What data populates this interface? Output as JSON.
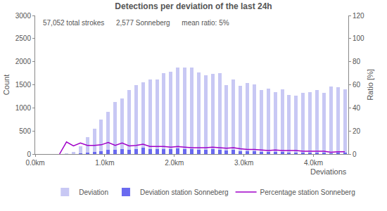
{
  "chart_data": {
    "type": "bar",
    "title": "Detections per deviation of the last 24h",
    "stats": [
      "57,052 total strokes",
      "2,577 Sonneberg",
      "mean ratio: 5%"
    ],
    "x_label": "Deviations",
    "y_label": "Count",
    "y2_label": "Ratio [%]",
    "x": [
      0.05,
      0.15,
      0.25,
      0.35,
      0.45,
      0.55,
      0.65,
      0.75,
      0.85,
      0.95,
      1.05,
      1.15,
      1.25,
      1.35,
      1.45,
      1.55,
      1.65,
      1.75,
      1.85,
      1.95,
      2.05,
      2.15,
      2.25,
      2.35,
      2.45,
      2.55,
      2.65,
      2.75,
      2.85,
      2.95,
      3.05,
      3.15,
      3.25,
      3.35,
      3.45,
      3.55,
      3.65,
      3.75,
      3.85,
      3.95,
      4.05,
      4.15,
      4.25,
      4.35,
      4.45
    ],
    "series": [
      {
        "name": "Deviation",
        "type": "bar",
        "color": "#c8c8f4",
        "values": [
          2,
          2,
          2,
          3,
          20,
          50,
          160,
          360,
          550,
          740,
          920,
          1120,
          1200,
          1390,
          1500,
          1550,
          1620,
          1620,
          1750,
          1780,
          1880,
          1870,
          1870,
          1760,
          1710,
          1730,
          1750,
          1500,
          1620,
          1480,
          1540,
          1510,
          1390,
          1420,
          1340,
          1400,
          1280,
          1270,
          1330,
          1340,
          1380,
          1330,
          1460,
          1450,
          1400
        ]
      },
      {
        "name": "Deviation station Sonneberg",
        "type": "bar",
        "color": "#6a6af0",
        "values": [
          0,
          0,
          0,
          0,
          2,
          4,
          15,
          27,
          41,
          59,
          92,
          84,
          114,
          97,
          113,
          132,
          105,
          105,
          114,
          107,
          122,
          112,
          103,
          97,
          94,
          104,
          96,
          75,
          89,
          67,
          62,
          60,
          49,
          43,
          47,
          42,
          38,
          38,
          33,
          34,
          35,
          33,
          22,
          29,
          28
        ]
      },
      {
        "name": "Percentage station Sonneberg",
        "type": "line",
        "axis": "y2",
        "color": "#a000c8",
        "values": [
          null,
          null,
          null,
          0,
          10.5,
          7,
          9.5,
          7.5,
          7.5,
          8,
          10,
          7.5,
          9.5,
          7,
          7.5,
          8.5,
          6.5,
          6.5,
          6.5,
          6,
          6.5,
          6,
          5.5,
          5.5,
          5.5,
          6,
          5.5,
          5,
          5.5,
          4.5,
          4,
          4,
          3.5,
          3,
          3.5,
          3,
          3,
          3,
          2.5,
          2.5,
          2.5,
          2.5,
          1.5,
          2,
          2
        ]
      }
    ],
    "xlim": [
      0,
      4.5
    ],
    "xticks": [
      {
        "value": 0,
        "label": "0.0km"
      },
      {
        "value": 1,
        "label": "1.0km"
      },
      {
        "value": 2,
        "label": "2.0km"
      },
      {
        "value": 3,
        "label": "3.0km"
      },
      {
        "value": 4,
        "label": "4.0km"
      }
    ],
    "ylim": [
      0,
      3000
    ],
    "yticks": [
      0,
      500,
      1000,
      1500,
      2000,
      2500,
      3000
    ],
    "y2lim": [
      0,
      120
    ],
    "y2ticks": [
      0,
      20,
      40,
      60,
      80,
      100,
      120
    ],
    "grid": false,
    "legend": "bottom"
  }
}
